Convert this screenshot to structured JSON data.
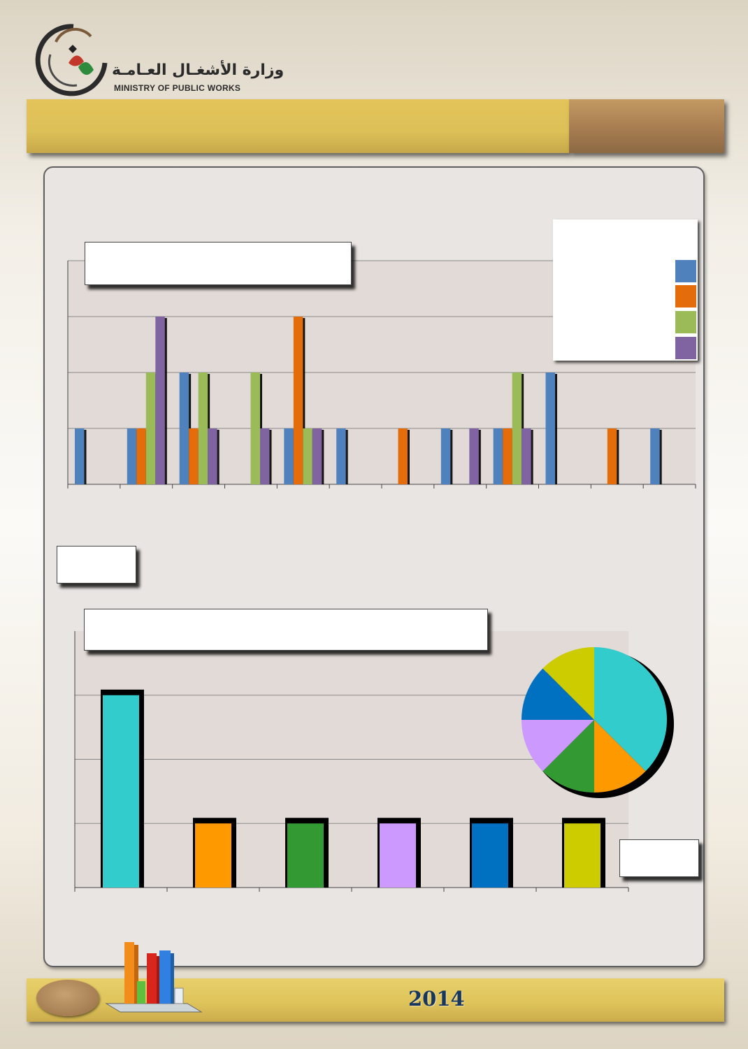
{
  "header": {
    "org_name_ar": "وزارة الأشغـال العـامـة",
    "org_name_en": "MINISTRY OF PUBLIC WORKS",
    "logo_icon": "ministry-logo-icon"
  },
  "footer": {
    "year": "2014",
    "icon": "bar-chart-icon"
  },
  "colors": {
    "blue": "#4f81bd",
    "orange": "#e46c0a",
    "green": "#9bbb59",
    "purple": "#8064a2",
    "teal": "#33cccc",
    "amber": "#ff9900",
    "dark_green": "#339933",
    "lilac": "#cc99ff",
    "royal_blue": "#0070c0",
    "olive_yellow": "#cccc00"
  },
  "chart_data": [
    {
      "type": "bar",
      "title": "",
      "categories": [
        "",
        "",
        "",
        "",
        "",
        "",
        "",
        "",
        "",
        "",
        "",
        ""
      ],
      "ylim": [
        0,
        4
      ],
      "grid": true,
      "legend": "top-right",
      "series": [
        {
          "color": "#4f81bd",
          "values": [
            1,
            1,
            2,
            0,
            1,
            1,
            0,
            1,
            1,
            2,
            0,
            1
          ]
        },
        {
          "color": "#e46c0a",
          "values": [
            0,
            1,
            1,
            0,
            3,
            0,
            1,
            0,
            1,
            0,
            1,
            0
          ]
        },
        {
          "color": "#9bbb59",
          "values": [
            0,
            2,
            2,
            2,
            1,
            0,
            0,
            0,
            2,
            0,
            0,
            0
          ]
        },
        {
          "color": "#8064a2",
          "values": [
            0,
            3,
            1,
            1,
            1,
            0,
            0,
            1,
            1,
            0,
            0,
            0
          ]
        }
      ]
    },
    {
      "type": "bar",
      "title": "",
      "categories": [
        "",
        "",
        "",
        "",
        "",
        ""
      ],
      "values": [
        3,
        1,
        1,
        1,
        1,
        1
      ],
      "colors": [
        "#33cccc",
        "#ff9900",
        "#339933",
        "#cc99ff",
        "#0070c0",
        "#cccc00"
      ],
      "ylim": [
        0,
        4
      ],
      "grid": true
    },
    {
      "type": "pie",
      "values": [
        3,
        1,
        1,
        1,
        1,
        1
      ],
      "colors": [
        "#33cccc",
        "#ff9900",
        "#339933",
        "#cc99ff",
        "#0070c0",
        "#cccc00"
      ]
    }
  ]
}
